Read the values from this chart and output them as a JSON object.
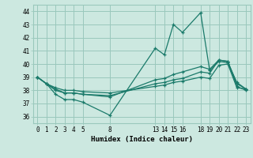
{
  "xlabel": "Humidex (Indice chaleur)",
  "bg_color": "#cce8e0",
  "grid_color": "#9ac8bc",
  "line_color": "#1a7a6a",
  "xticks": [
    0,
    1,
    2,
    3,
    4,
    5,
    8,
    13,
    14,
    15,
    16,
    18,
    19,
    20,
    21,
    22,
    23
  ],
  "ylim": [
    35.5,
    44.5
  ],
  "xlim": [
    -0.5,
    23.5
  ],
  "yticks": [
    36,
    37,
    38,
    39,
    40,
    41,
    42,
    43,
    44
  ],
  "lines": [
    {
      "x": [
        0,
        1,
        2,
        3,
        4,
        5,
        8,
        13,
        14,
        15,
        16,
        18,
        19,
        20,
        21,
        22,
        23
      ],
      "y": [
        39.0,
        38.5,
        37.7,
        37.3,
        37.3,
        37.1,
        36.1,
        41.2,
        40.7,
        43.0,
        42.4,
        43.9,
        39.5,
        40.2,
        40.1,
        38.6,
        38.1
      ]
    },
    {
      "x": [
        0,
        1,
        2,
        3,
        4,
        5,
        8,
        13,
        14,
        15,
        16,
        18,
        19,
        20,
        21,
        22,
        23
      ],
      "y": [
        39.0,
        38.5,
        38.0,
        37.8,
        37.8,
        37.7,
        37.5,
        38.8,
        38.9,
        39.2,
        39.4,
        39.8,
        39.6,
        40.3,
        40.2,
        38.5,
        38.1
      ]
    },
    {
      "x": [
        0,
        1,
        2,
        3,
        4,
        5,
        8,
        13,
        14,
        15,
        16,
        18,
        19,
        20,
        21,
        22,
        23
      ],
      "y": [
        39.0,
        38.5,
        38.1,
        37.8,
        37.8,
        37.7,
        37.6,
        38.5,
        38.6,
        38.8,
        38.9,
        39.4,
        39.3,
        40.3,
        40.2,
        38.3,
        38.0
      ]
    },
    {
      "x": [
        0,
        1,
        2,
        3,
        4,
        5,
        8,
        13,
        14,
        15,
        16,
        18,
        19,
        20,
        21,
        22,
        23
      ],
      "y": [
        39.0,
        38.5,
        38.2,
        38.0,
        38.0,
        37.9,
        37.8,
        38.3,
        38.4,
        38.6,
        38.7,
        39.0,
        38.9,
        39.9,
        40.0,
        38.2,
        38.1
      ]
    }
  ]
}
